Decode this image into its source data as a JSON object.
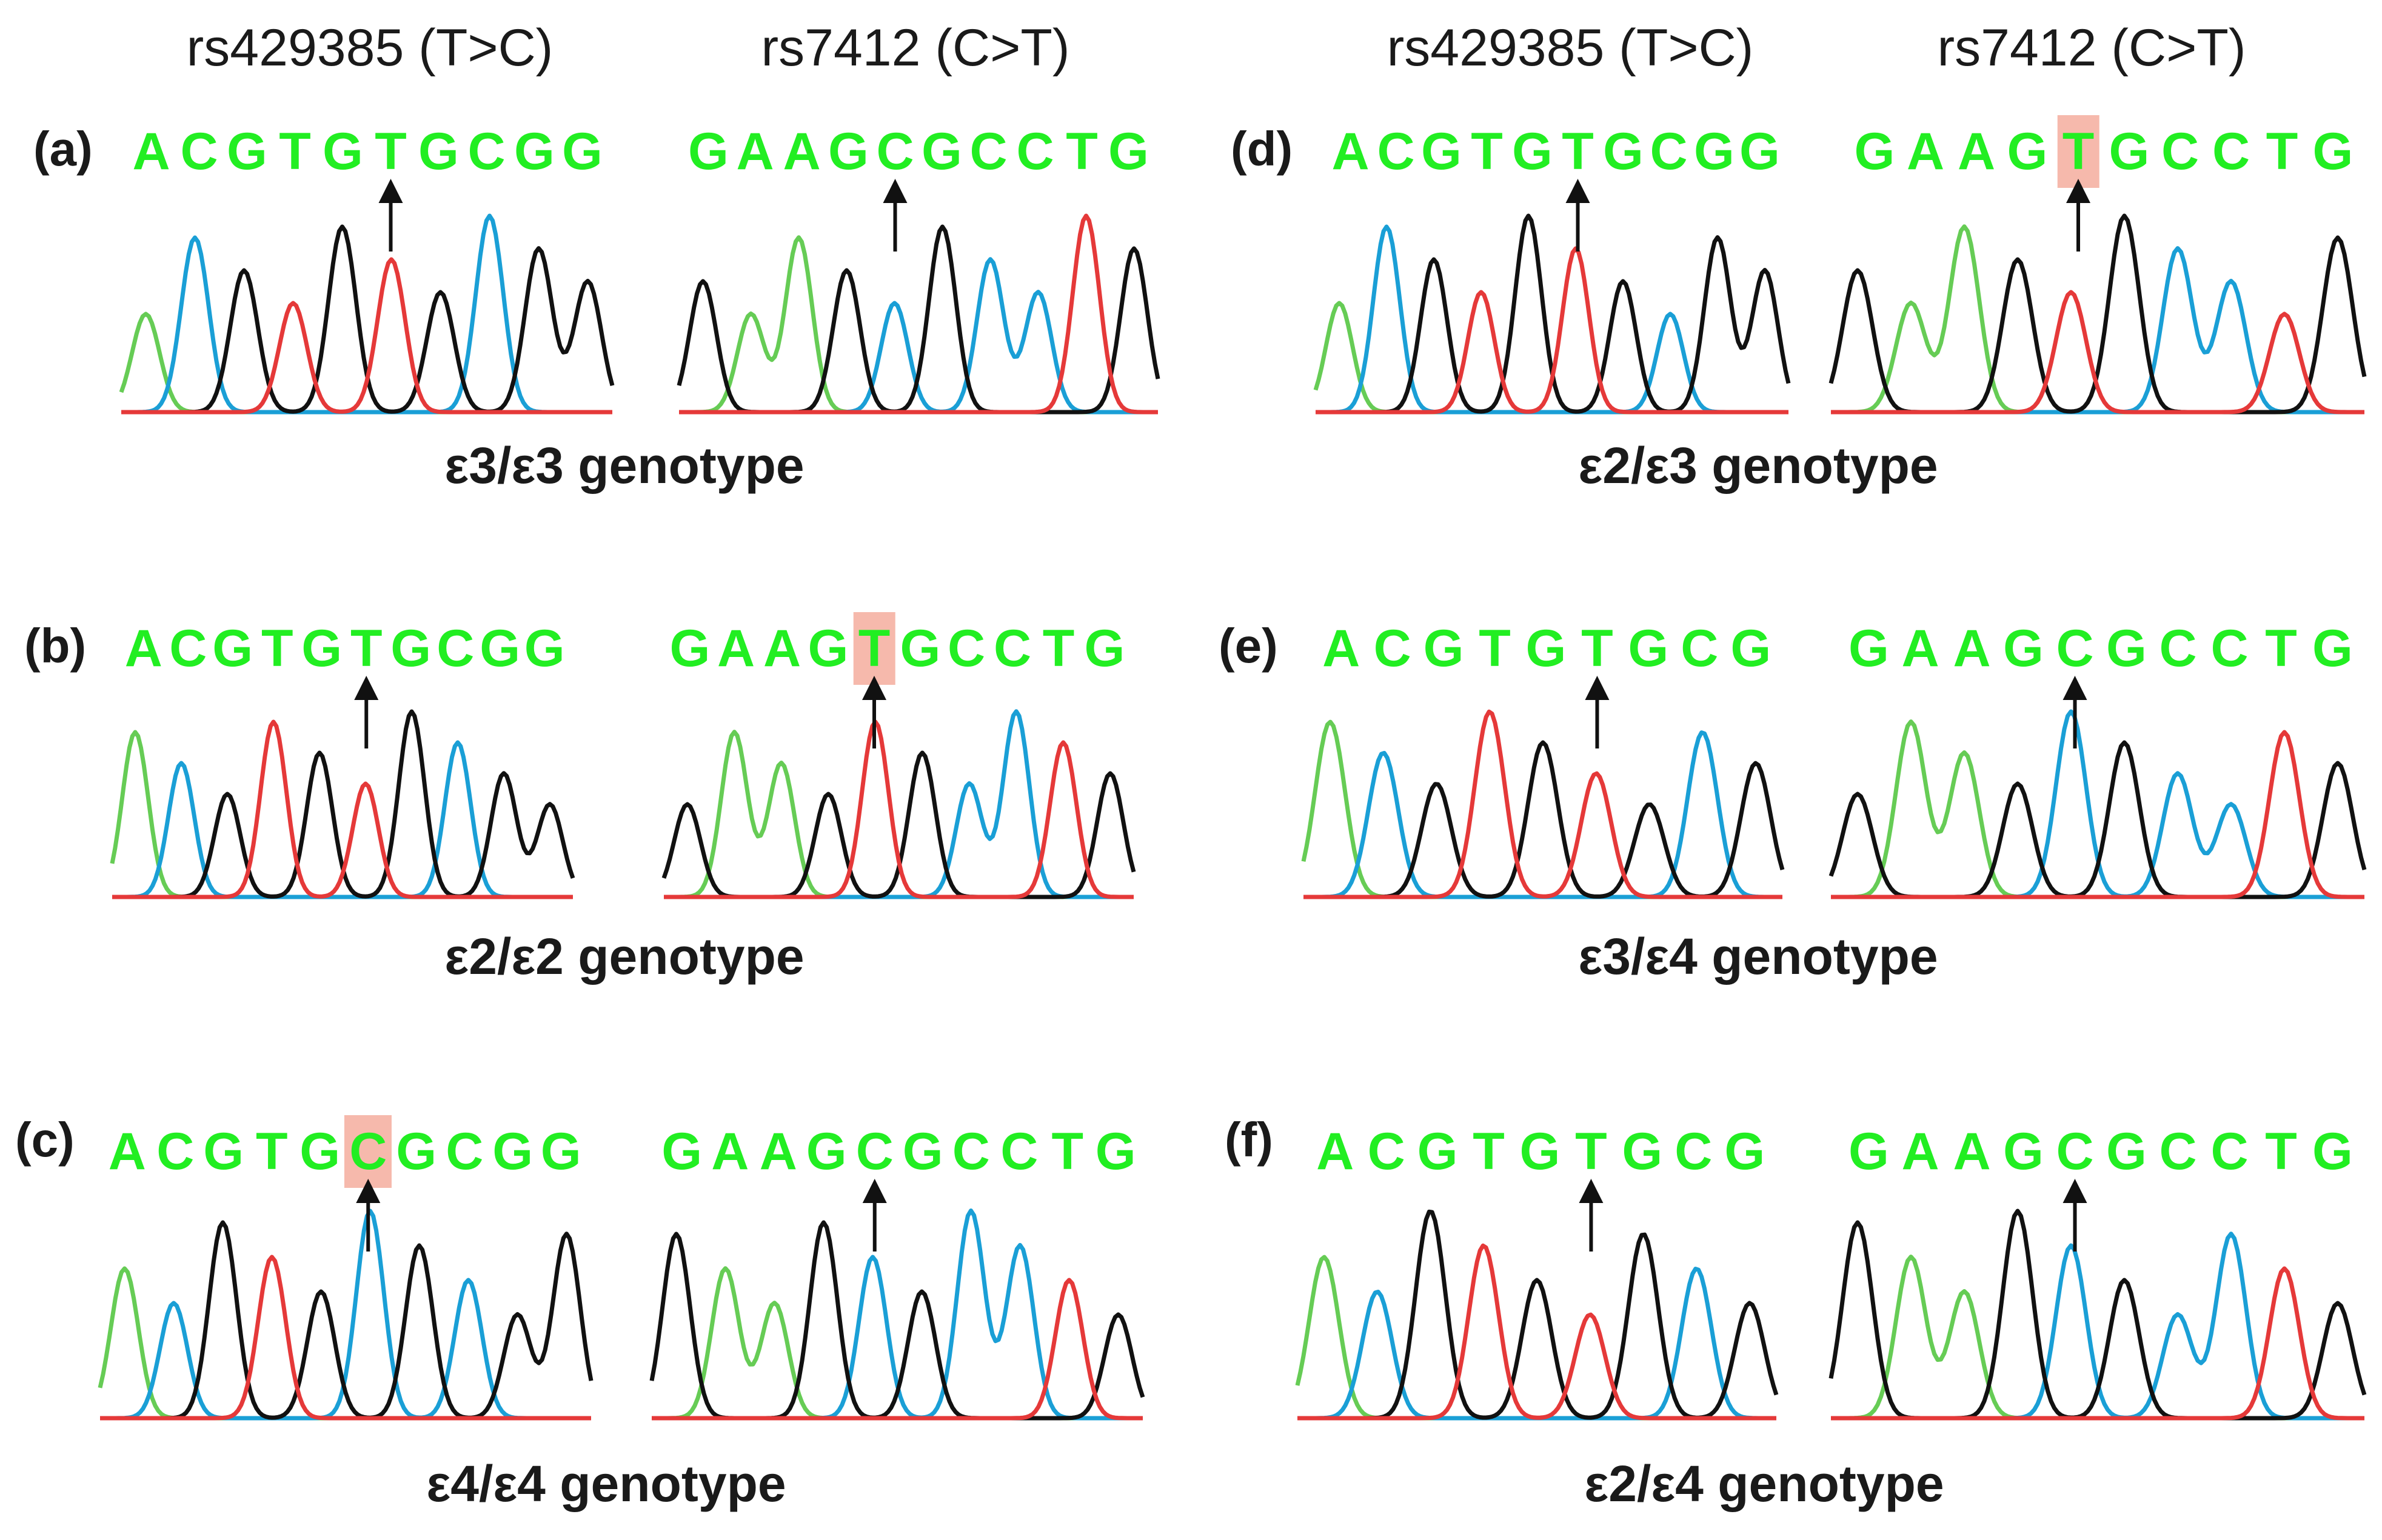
{
  "column_headers": [
    "rs429385 (T>C)",
    "rs7412 (C>T)",
    "rs429385 (T>C)",
    "rs7412 (C>T)"
  ],
  "colors": {
    "sequence_text": "#22ee22",
    "highlight": "#f6b9ac",
    "trace_A": "#66cc55",
    "trace_C": "#1a9fd6",
    "trace_G": "#111111",
    "trace_T": "#e53939",
    "arrow": "#111111"
  },
  "panels": [
    {
      "label": "(a)",
      "genotype": "ε3/ε3 genotype",
      "sequences": [
        {
          "bases": [
            "A",
            "C",
            "G",
            "T",
            "G",
            "T",
            "G",
            "C",
            "G",
            "G"
          ],
          "mutation_index": 5,
          "highlighted": false
        },
        {
          "bases": [
            "G",
            "A",
            "A",
            "G",
            "C",
            "G",
            "C",
            "C",
            "T",
            "G"
          ],
          "mutation_index": 4,
          "highlighted": false
        }
      ]
    },
    {
      "label": "(b)",
      "genotype": "ε2/ε2 genotype",
      "sequences": [
        {
          "bases": [
            "A",
            "C",
            "G",
            "T",
            "G",
            "T",
            "G",
            "C",
            "G",
            "G"
          ],
          "mutation_index": 5,
          "highlighted": false
        },
        {
          "bases": [
            "G",
            "A",
            "A",
            "G",
            "T",
            "G",
            "C",
            "C",
            "T",
            "G"
          ],
          "mutation_index": 4,
          "highlighted": true
        }
      ]
    },
    {
      "label": "(c)",
      "genotype": "ε4/ε4 genotype",
      "sequences": [
        {
          "bases": [
            "A",
            "C",
            "G",
            "T",
            "G",
            "C",
            "G",
            "C",
            "G",
            "G"
          ],
          "mutation_index": 5,
          "highlighted": true
        },
        {
          "bases": [
            "G",
            "A",
            "A",
            "G",
            "C",
            "G",
            "C",
            "C",
            "T",
            "G"
          ],
          "mutation_index": 4,
          "highlighted": false
        }
      ]
    },
    {
      "label": "(d)",
      "genotype": "ε2/ε3 genotype",
      "sequences": [
        {
          "bases": [
            "A",
            "C",
            "G",
            "T",
            "G",
            "T",
            "G",
            "C",
            "G",
            "G"
          ],
          "mutation_index": 5,
          "highlighted": false
        },
        {
          "bases": [
            "G",
            "A",
            "A",
            "G",
            "T",
            "G",
            "C",
            "C",
            "T",
            "G"
          ],
          "mutation_index": 4,
          "highlighted": true
        }
      ]
    },
    {
      "label": "(e)",
      "genotype": "ε3/ε4 genotype",
      "sequences": [
        {
          "bases": [
            "A",
            "C",
            "G",
            "T",
            "G",
            "T",
            "G",
            "C",
            "G"
          ],
          "mutation_index": 5,
          "highlighted": false
        },
        {
          "bases": [
            "G",
            "A",
            "A",
            "G",
            "C",
            "G",
            "C",
            "C",
            "T",
            "G"
          ],
          "mutation_index": 4,
          "highlighted": false
        }
      ]
    },
    {
      "label": "(f)",
      "genotype": "ε2/ε4 genotype",
      "sequences": [
        {
          "bases": [
            "A",
            "C",
            "G",
            "T",
            "G",
            "T",
            "G",
            "C",
            "G"
          ],
          "mutation_index": 5,
          "highlighted": false
        },
        {
          "bases": [
            "G",
            "A",
            "A",
            "G",
            "C",
            "G",
            "C",
            "C",
            "T",
            "G"
          ],
          "mutation_index": 4,
          "highlighted": false
        }
      ]
    }
  ]
}
